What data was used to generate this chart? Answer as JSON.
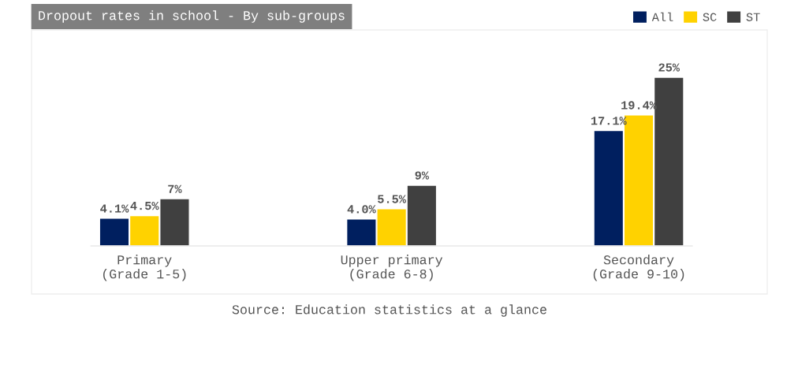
{
  "chart_data": {
    "type": "bar",
    "title": "Dropout rates in school - By sub-groups",
    "categories": [
      "Primary\n(Grade 1-5)",
      "Upper primary\n(Grade 6-8)",
      "Secondary\n(Grade 9-10)"
    ],
    "series": [
      {
        "name": "All",
        "color": "#001f5f",
        "values": [
          4.1,
          4.0,
          17.1
        ],
        "value_labels": [
          "4.1%",
          "4.0%",
          "17.1%"
        ]
      },
      {
        "name": "SC",
        "color": "#ffd200",
        "values": [
          4.5,
          5.5,
          19.4
        ],
        "value_labels": [
          "4.5%",
          "5.5%",
          "19.4%"
        ]
      },
      {
        "name": "ST",
        "color": "#404040",
        "values": [
          7,
          9,
          25
        ],
        "value_labels": [
          "7%",
          "9%",
          "25%"
        ]
      }
    ],
    "legend": "top right",
    "annotations": [
      "Source: Education statistics at a glance"
    ]
  }
}
